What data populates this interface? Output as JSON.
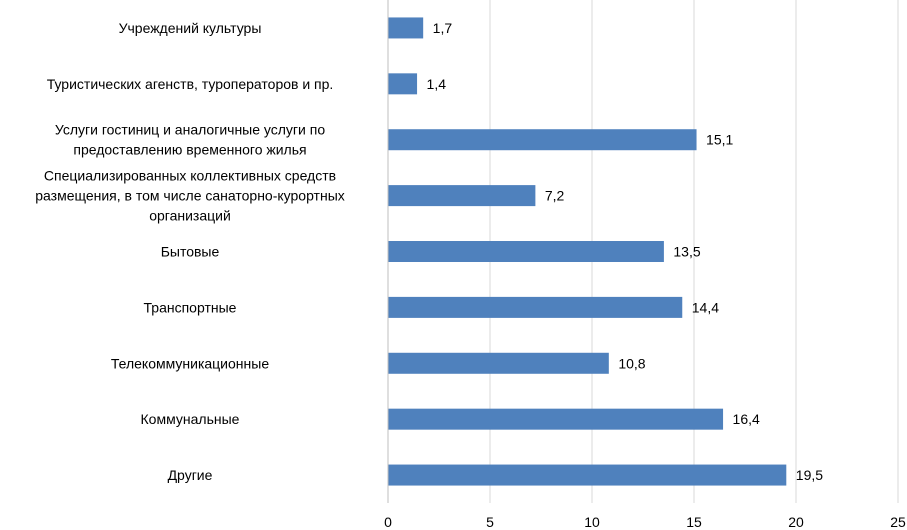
{
  "chart_data": {
    "type": "bar",
    "orientation": "horizontal",
    "categories": [
      [
        "Учреждений культуры"
      ],
      [
        "Туристических агенств, туроператоров и пр."
      ],
      [
        "Услуги гостиниц и аналогичные услуги по",
        "предоставлению временного жилья"
      ],
      [
        "Специализированных коллективных средств",
        "размещения, в том числе санаторно-курортных",
        "организаций"
      ],
      [
        "Бытовые"
      ],
      [
        "Транспортные"
      ],
      [
        "Телекоммуникационные"
      ],
      [
        "Коммунальные"
      ],
      [
        "Другие"
      ]
    ],
    "values": [
      1.7,
      1.4,
      15.1,
      7.2,
      13.5,
      14.4,
      10.8,
      16.4,
      19.5
    ],
    "value_labels": [
      "1,7",
      "1,4",
      "15,1",
      "7,2",
      "13,5",
      "14,4",
      "10,8",
      "16,4",
      "19,5"
    ],
    "xlim": [
      0,
      25
    ],
    "xticks": [
      0,
      5,
      10,
      15,
      20,
      25
    ],
    "grid": "vertical",
    "legend": "none",
    "colors": {
      "bar": "#4f81bd",
      "grid": "#d9d9d9",
      "axis": "#bfbfbf"
    }
  }
}
